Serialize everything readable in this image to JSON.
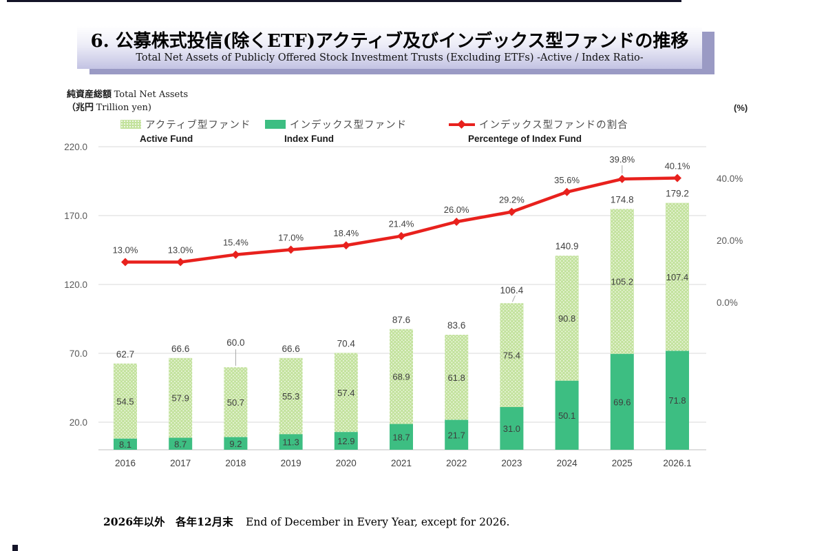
{
  "page": {
    "title_jp": "6. 公募株式投信(除くETF)アクティブ及びインデックス型ファンドの推移",
    "subtitle_en": "Total Net Assets of Publicly Offered Stock Investment Trusts (Excluding ETFs) -Active / Index Ratio-",
    "footnote_jp": "2026年以外　各年12月末",
    "footnote_en": "End of December in Every Year, except for 2026."
  },
  "left_axis_title": {
    "jp1": "純資産総額",
    "en1": "Total Net Assets",
    "jp2": "（兆円 ",
    "en2": "Trillion yen)"
  },
  "right_axis_unit": "(%)",
  "legend": {
    "active": {
      "jp": "アクティブ型ファンド",
      "en": "Active Fund"
    },
    "index": {
      "jp": "インデックス型ファンド",
      "en": "Index Fund"
    },
    "ratio": {
      "jp": "インデックス型ファンドの割合",
      "en": "Percentege of Index Fund"
    }
  },
  "chart_data": {
    "type": "bar",
    "subtype": "stacked-bars-with-percentage-line",
    "title": "公募株式投信(除くETF)アクティブ及びインデックス型ファンドの推移",
    "categories": [
      "2016",
      "2017",
      "2018",
      "2019",
      "2020",
      "2021",
      "2022",
      "2023",
      "2024",
      "2025",
      "2026.1"
    ],
    "series": [
      {
        "name": "Active Fund アクティブ型ファンド",
        "axis": "left",
        "values": [
          54.5,
          57.9,
          50.7,
          55.3,
          57.4,
          68.9,
          61.8,
          75.4,
          90.8,
          105.2,
          107.4
        ]
      },
      {
        "name": "Index Fund インデックス型ファンド",
        "axis": "left",
        "values": [
          8.1,
          8.7,
          9.2,
          11.3,
          12.9,
          18.7,
          21.7,
          31.0,
          50.1,
          69.6,
          71.8
        ]
      },
      {
        "name": "Percentege of Index Fund インデックス型ファンドの割合",
        "type": "line",
        "axis": "right",
        "values": [
          13.0,
          13.0,
          15.4,
          17.0,
          18.4,
          21.4,
          26.0,
          29.2,
          35.6,
          39.8,
          40.1
        ]
      }
    ],
    "totals": [
      62.7,
      66.6,
      60.0,
      66.6,
      70.4,
      87.6,
      83.6,
      106.4,
      140.9,
      174.8,
      179.2
    ],
    "ylabel": "純資産総額 Total Net Assets（兆円 Trillion yen）",
    "y2label": "(%)",
    "left_axis": {
      "ticks": [
        220.0,
        170.0,
        120.0,
        70.0,
        20.0
      ],
      "min": 0,
      "max": 230
    },
    "right_axis": {
      "ticks": [
        40.0,
        20.0,
        0.0
      ],
      "unit": "%"
    },
    "grid": true,
    "legend_position": "top",
    "colors": {
      "active": "#c3e29d",
      "index": "#3dbe82",
      "line": "#e8211d",
      "grid": "#d9d9d9",
      "baseline": "#bfbfbf",
      "leader": "#a6a6a6"
    }
  }
}
